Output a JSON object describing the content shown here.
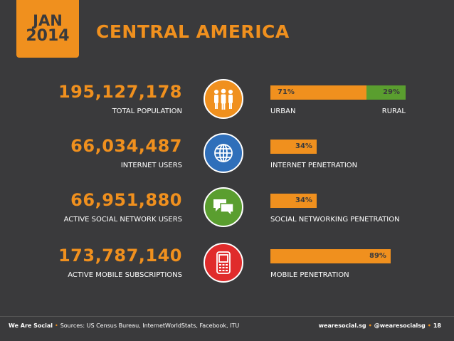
{
  "header": {
    "month": "JAN",
    "year": "2014",
    "title": "CENTRAL AMERICA"
  },
  "stats": [
    {
      "value": "195,127,178",
      "label": "TOTAL POPULATION",
      "icon": "people-icon",
      "icon_color": "#f0901e"
    },
    {
      "value": "66,034,487",
      "label": "INTERNET USERS",
      "icon": "globe-icon",
      "icon_color": "#2f6fba"
    },
    {
      "value": "66,951,880",
      "label": "ACTIVE SOCIAL NETWORK USERS",
      "icon": "chat-bubbles-icon",
      "icon_color": "#5a9e2f"
    },
    {
      "value": "173,787,140",
      "label": "ACTIVE MOBILE SUBSCRIPTIONS",
      "icon": "mobile-phone-icon",
      "icon_color": "#e02b2b"
    }
  ],
  "chart_data": {
    "type": "bar",
    "bars": [
      {
        "caption": "URBAN",
        "caption_right": "RURAL",
        "value": 71,
        "rest": 29,
        "value_label": "71%",
        "rest_label": "29%"
      },
      {
        "caption": "INTERNET PENETRATION",
        "value": 34,
        "value_label": "34%"
      },
      {
        "caption": "SOCIAL NETWORKING PENETRATION",
        "value": 34,
        "value_label": "34%"
      },
      {
        "caption": "MOBILE PENETRATION",
        "value": 89,
        "value_label": "89%"
      }
    ],
    "colors": {
      "fill": "#f0901e",
      "rest": "#5a9e2f"
    }
  },
  "footer": {
    "brand": "We Are Social",
    "sources": "Sources: US Census Bureau, InternetWorldStats, Facebook, ITU",
    "site": "wearesocial.sg",
    "handle": "@wearesocialsg",
    "page": "18"
  }
}
